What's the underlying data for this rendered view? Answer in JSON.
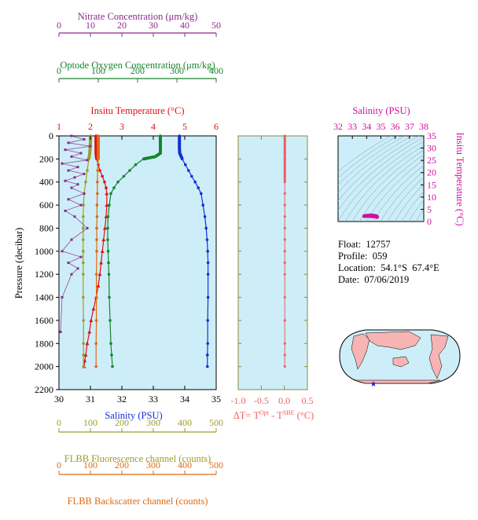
{
  "colors": {
    "panel_bg": "#cdeef8",
    "nitrate": "#8b2a8b",
    "oxygen": "#16852e",
    "temperature": "#e01010",
    "salinity": "#1230d0",
    "fluorescence": "#9c9c2a",
    "backscatter": "#e06a10",
    "delta_t": "#f06060",
    "ts_marker": "#d010a0",
    "axis_olive": "#8a8a3a",
    "map_land": "#f6b4b4",
    "map_sea": "#cdeef8",
    "float_marker": "#1020d0"
  },
  "info": {
    "float": "Float:  12757",
    "profile": "Profile:  059",
    "location": "Location:  54.1°S  67.4°E",
    "date": "Date:  07/06/2019"
  },
  "chart_data": [
    {
      "type": "line",
      "name": "profile_panel",
      "ylabel": "Pressure (decibar)",
      "ylim": [
        2200,
        0
      ],
      "yticks": [
        0,
        200,
        400,
        600,
        800,
        1000,
        1200,
        1400,
        1600,
        1800,
        2000,
        2200
      ],
      "axes": {
        "nitrate": {
          "label": "Nitrate Concentration (μm/kg)",
          "range": [
            0,
            50
          ],
          "ticks": [
            0,
            10,
            20,
            30,
            40,
            50
          ],
          "position": "top-1"
        },
        "oxygen": {
          "label": "Optode Oxygen Concentration (μm/kg)",
          "range": [
            0,
            400
          ],
          "ticks": [
            0,
            100,
            200,
            300,
            400
          ],
          "position": "top-2"
        },
        "temperature": {
          "label": "Insitu Temperature (°C)",
          "range": [
            1,
            6
          ],
          "ticks": [
            1,
            2,
            3,
            4,
            5,
            6
          ],
          "position": "top-3"
        },
        "salinity": {
          "label": "Salinity (PSU)",
          "range": [
            30,
            35
          ],
          "ticks": [
            30,
            31,
            32,
            33,
            34,
            35
          ],
          "position": "bottom-1"
        },
        "fluorescence": {
          "label": "FLBB Fluorescence channel (counts)",
          "range": [
            0,
            500
          ],
          "ticks": [
            0,
            100,
            200,
            300,
            400,
            500
          ],
          "position": "bottom-2"
        },
        "backscatter": {
          "label": "FLBB Backscatter channel (counts)",
          "range": [
            0,
            500
          ],
          "ticks": [
            0,
            100,
            200,
            300,
            400,
            500
          ],
          "position": "bottom-3"
        }
      },
      "series": [
        {
          "key": "salinity",
          "axis": "salinity",
          "x": [
            33.83,
            33.83,
            33.83,
            33.84,
            33.92,
            34.02,
            34.12,
            34.22,
            34.33,
            34.43,
            34.52,
            34.58,
            34.64,
            34.68,
            34.71,
            34.73,
            34.74,
            34.74,
            34.74,
            34.73,
            34.73,
            34.72,
            34.72
          ],
          "p": [
            0,
            50,
            100,
            150,
            200,
            250,
            300,
            350,
            400,
            450,
            500,
            600,
            700,
            800,
            900,
            1000,
            1100,
            1200,
            1400,
            1600,
            1800,
            1900,
            2000
          ]
        },
        {
          "key": "temperature",
          "axis": "temperature",
          "x": [
            2.18,
            2.18,
            2.18,
            2.18,
            2.2,
            2.25,
            2.3,
            2.38,
            2.45,
            2.5,
            2.52,
            2.52,
            2.5,
            2.46,
            2.42,
            2.38,
            2.34,
            2.3,
            2.25,
            2.18,
            2.1,
            2.02,
            1.97,
            1.9,
            1.85,
            1.82,
            1.8
          ],
          "p": [
            0,
            50,
            100,
            150,
            200,
            250,
            300,
            350,
            400,
            450,
            500,
            600,
            700,
            800,
            900,
            1000,
            1100,
            1200,
            1300,
            1400,
            1500,
            1600,
            1700,
            1800,
            1900,
            1950,
            2000
          ]
        },
        {
          "key": "oxygen",
          "axis": "oxygen",
          "x": [
            258,
            258,
            258,
            258,
            245,
            215,
            195,
            180,
            165,
            150,
            140,
            132,
            128,
            125,
            124,
            124,
            125,
            126,
            127,
            128,
            130,
            132,
            134,
            136
          ],
          "p": [
            0,
            50,
            100,
            150,
            180,
            200,
            250,
            300,
            350,
            400,
            450,
            500,
            600,
            700,
            800,
            900,
            1000,
            1100,
            1200,
            1400,
            1600,
            1800,
            1900,
            2000
          ]
        },
        {
          "key": "fluorescence",
          "axis": "fluorescence",
          "x": [
            100,
            100,
            99,
            98,
            95,
            90,
            85,
            80,
            78,
            77,
            77,
            77,
            77,
            77,
            77,
            77,
            78,
            78,
            78,
            78
          ],
          "p": [
            0,
            50,
            100,
            150,
            200,
            300,
            400,
            500,
            600,
            700,
            800,
            900,
            1000,
            1100,
            1200,
            1400,
            1600,
            1800,
            1900,
            2000
          ]
        },
        {
          "key": "backscatter",
          "axis": "backscatter",
          "x": [
            125,
            125,
            125,
            125,
            125,
            123,
            122,
            122,
            121,
            121,
            120,
            120,
            120,
            119,
            119,
            119,
            118,
            118
          ],
          "p": [
            0,
            50,
            100,
            150,
            200,
            300,
            400,
            500,
            600,
            700,
            800,
            900,
            1000,
            1200,
            1400,
            1600,
            1800,
            2000
          ]
        },
        {
          "key": "nitrate",
          "axis": "nitrate",
          "x": [
            4,
            8,
            3,
            10,
            2,
            7,
            4,
            9,
            1,
            6,
            3,
            8,
            5,
            2,
            6,
            4,
            8,
            3,
            7,
            2,
            5,
            9,
            4,
            1,
            7,
            3,
            6,
            4,
            1,
            0.5
          ],
          "p": [
            0,
            30,
            60,
            90,
            120,
            150,
            180,
            210,
            240,
            270,
            300,
            330,
            360,
            390,
            420,
            450,
            500,
            550,
            600,
            650,
            700,
            800,
            900,
            1000,
            1050,
            1100,
            1150,
            1200,
            1400,
            1700
          ]
        }
      ]
    },
    {
      "type": "line",
      "name": "delta_t_panel",
      "xlabel": "ΔT= T^Opt - T^SBE (°C)",
      "xlim": [
        -1.0,
        0.5
      ],
      "xticks": [
        -1.0,
        -0.5,
        0.0,
        0.5
      ],
      "ylim": [
        2200,
        0
      ],
      "series": [
        {
          "key": "delta_t",
          "x": [
            0.01,
            0.01,
            0.01,
            0.01,
            0.01,
            0.01,
            0.01,
            0.01,
            0.01,
            0.01,
            0.01,
            0.01,
            0.01,
            0.01,
            0.01,
            0.01,
            0.01,
            0.01,
            0.01,
            0.01,
            0.01,
            0.01
          ],
          "p": [
            0,
            50,
            100,
            150,
            200,
            250,
            300,
            350,
            400,
            500,
            600,
            700,
            800,
            900,
            1000,
            1100,
            1200,
            1400,
            1600,
            1800,
            1900,
            2000
          ]
        }
      ]
    },
    {
      "type": "scatter",
      "name": "ts_panel",
      "xlabel": "Salinity (PSU)",
      "ylabel": "Insitu Temperature (°C)",
      "xlim": [
        32,
        38
      ],
      "ylim": [
        0,
        35
      ],
      "xticks": [
        32,
        33,
        34,
        35,
        36,
        37,
        38
      ],
      "yticks": [
        0,
        5,
        10,
        15,
        20,
        25,
        30,
        35
      ],
      "series": [
        {
          "key": "ts",
          "x": [
            33.83,
            33.9,
            34.0,
            34.1,
            34.2,
            34.3,
            34.4,
            34.5,
            34.6,
            34.7,
            34.74,
            34.72,
            34.5,
            34.3,
            34.1,
            33.95
          ],
          "y": [
            2.18,
            2.25,
            2.35,
            2.45,
            2.5,
            2.52,
            2.5,
            2.42,
            2.3,
            2.1,
            1.9,
            1.8,
            2.0,
            2.1,
            2.2,
            2.2
          ]
        }
      ]
    }
  ]
}
